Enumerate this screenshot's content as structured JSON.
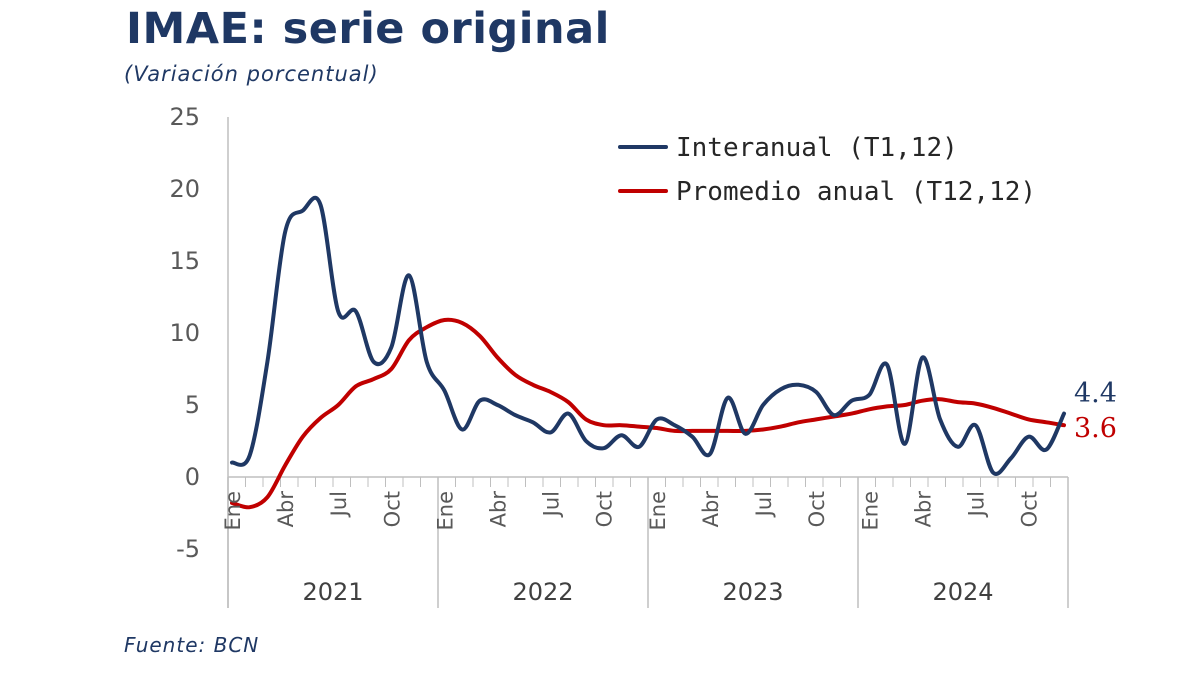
{
  "title": "IMAE: serie original",
  "subtitle": "(Variación porcentual)",
  "source": "Fuente: BCN",
  "chart_data": {
    "type": "line",
    "ylim": [
      -5,
      25
    ],
    "yticks": [
      "25",
      "20",
      "15",
      "10",
      "5",
      "0",
      "-5"
    ],
    "month_labels": [
      "Ene",
      "Abr",
      "Jul",
      "Oct",
      "Ene",
      "Abr",
      "Jul",
      "Oct",
      "Ene",
      "Abr",
      "Jul",
      "Oct",
      "Ene",
      "Abr",
      "Jul",
      "Oct"
    ],
    "years": [
      "2021",
      "2022",
      "2023",
      "2024"
    ],
    "x_count": 48,
    "series": [
      {
        "name": "Interanual (T1,12)",
        "color": "#1f3864",
        "values": [
          1.0,
          1.5,
          8.0,
          17.0,
          18.5,
          18.9,
          11.5,
          11.5,
          8.0,
          9.0,
          14.0,
          8.0,
          6.0,
          3.3,
          5.3,
          5.0,
          4.3,
          3.8,
          3.1,
          4.4,
          2.5,
          2.0,
          2.9,
          2.1,
          4.0,
          3.6,
          2.8,
          1.6,
          5.5,
          3.0,
          5.0,
          6.1,
          6.4,
          5.9,
          4.3,
          5.3,
          5.7,
          7.8,
          2.3,
          8.3,
          4.0,
          2.1,
          3.6,
          0.3,
          1.3,
          2.8,
          1.9,
          4.4
        ],
        "end_label": "4.4"
      },
      {
        "name": "Promedio anual (T12,12)",
        "color": "#c00000",
        "values": [
          -1.8,
          -2.1,
          -1.4,
          0.8,
          2.8,
          4.1,
          5.0,
          6.3,
          6.8,
          7.5,
          9.5,
          10.4,
          10.9,
          10.7,
          9.8,
          8.3,
          7.1,
          6.4,
          5.9,
          5.2,
          4.0,
          3.6,
          3.6,
          3.5,
          3.4,
          3.2,
          3.2,
          3.2,
          3.2,
          3.2,
          3.3,
          3.5,
          3.8,
          4.0,
          4.2,
          4.4,
          4.7,
          4.9,
          5.0,
          5.3,
          5.4,
          5.2,
          5.1,
          4.8,
          4.4,
          4.0,
          3.8,
          3.6
        ],
        "end_label": "3.6"
      }
    ]
  }
}
